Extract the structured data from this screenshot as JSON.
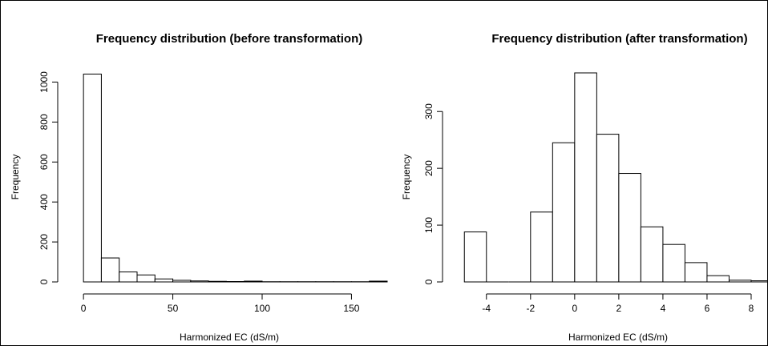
{
  "chart_data": [
    {
      "type": "bar",
      "title": "Frequency distribution (before transformation)",
      "xlabel": "Harmonized EC (dS/m)",
      "ylabel": "Frequency",
      "bin_edges": [
        0,
        10,
        20,
        30,
        40,
        50,
        60,
        70,
        80,
        90,
        100,
        110,
        120,
        130,
        140,
        150,
        160,
        170
      ],
      "values": [
        1040,
        120,
        50,
        35,
        15,
        8,
        5,
        3,
        2,
        4,
        1,
        1,
        1,
        1,
        1,
        1,
        4
      ],
      "xlim": [
        -5,
        170
      ],
      "ylim": [
        0,
        1050
      ],
      "x_ticks": [
        0,
        50,
        100,
        150
      ],
      "y_ticks": [
        0,
        200,
        400,
        600,
        800,
        1000
      ],
      "bar_fill": "#ffffff",
      "bar_stroke": "#000000",
      "grid": false
    },
    {
      "type": "bar",
      "title": "Frequency distribution (after transformation)",
      "xlabel": "Harmonized EC (dS/m)",
      "ylabel": "Frequency",
      "bin_edges": [
        -5,
        -4,
        -3,
        -2,
        -1,
        0,
        1,
        2,
        3,
        4,
        5,
        6,
        7,
        8,
        9
      ],
      "values": [
        88,
        0,
        0,
        123,
        245,
        368,
        260,
        191,
        97,
        66,
        34,
        11,
        3,
        2
      ],
      "xlim": [
        -5.3,
        8.8
      ],
      "ylim": [
        0,
        368
      ],
      "x_ticks": [
        -4,
        -2,
        0,
        2,
        4,
        6,
        8
      ],
      "y_ticks": [
        0,
        100,
        200,
        300
      ],
      "bar_fill": "#ffffff",
      "bar_stroke": "#000000",
      "grid": false
    }
  ]
}
